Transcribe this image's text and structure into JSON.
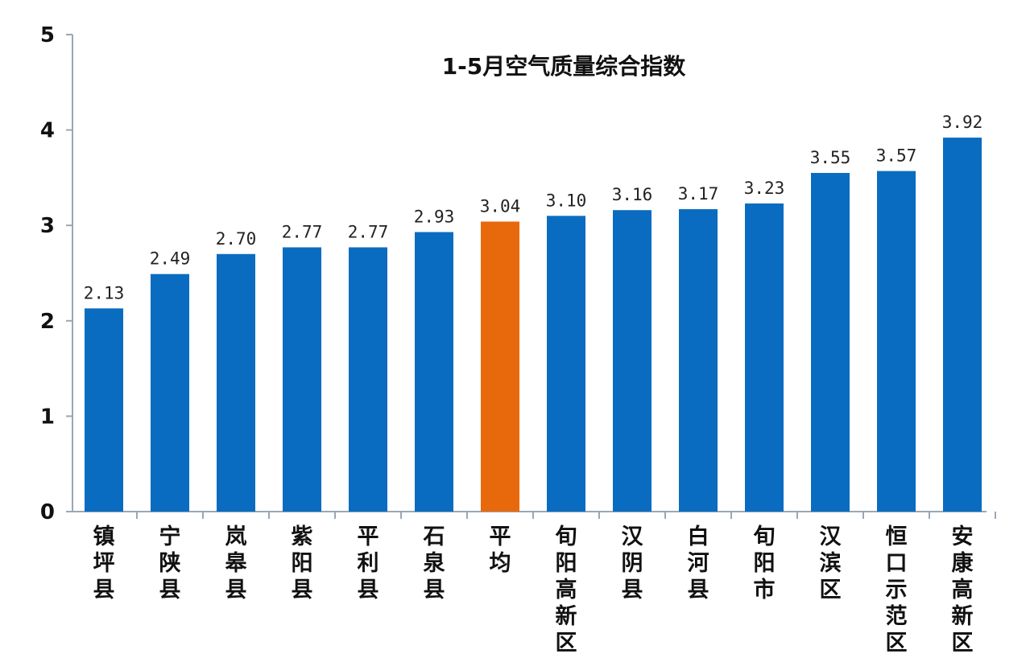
{
  "chart_data": {
    "type": "bar",
    "title": "1-5月空气质量综合指数",
    "xlabel": "",
    "ylabel": "",
    "ylim": [
      0,
      5
    ],
    "yticks": [
      "0",
      "1",
      "2",
      "3",
      "4",
      "5"
    ],
    "categories": [
      "镇坪县",
      "宁陕县",
      "岚皋县",
      "紫阳县",
      "平利县",
      "石泉县",
      "平均",
      "旬阳高新区",
      "汉阴县",
      "白河县",
      "旬阳市",
      "汉滨区",
      "恒口示范区",
      "安康高新区"
    ],
    "values": [
      2.13,
      2.49,
      2.7,
      2.77,
      2.77,
      2.93,
      3.04,
      3.1,
      3.16,
      3.17,
      3.23,
      3.55,
      3.57,
      3.92
    ],
    "data_labels": [
      "2.13",
      "2.49",
      "2.70",
      "2.77",
      "2.77",
      "2.93",
      "3.04",
      "3.10",
      "3.16",
      "3.17",
      "3.23",
      "3.55",
      "3.57",
      "3.92"
    ],
    "highlight_index": 6,
    "colors": {
      "bar": "#0a6cc0",
      "highlight": "#e8690c",
      "axis": "#9aa7b3",
      "text": "#111111"
    },
    "grid": false,
    "legend": "none"
  }
}
